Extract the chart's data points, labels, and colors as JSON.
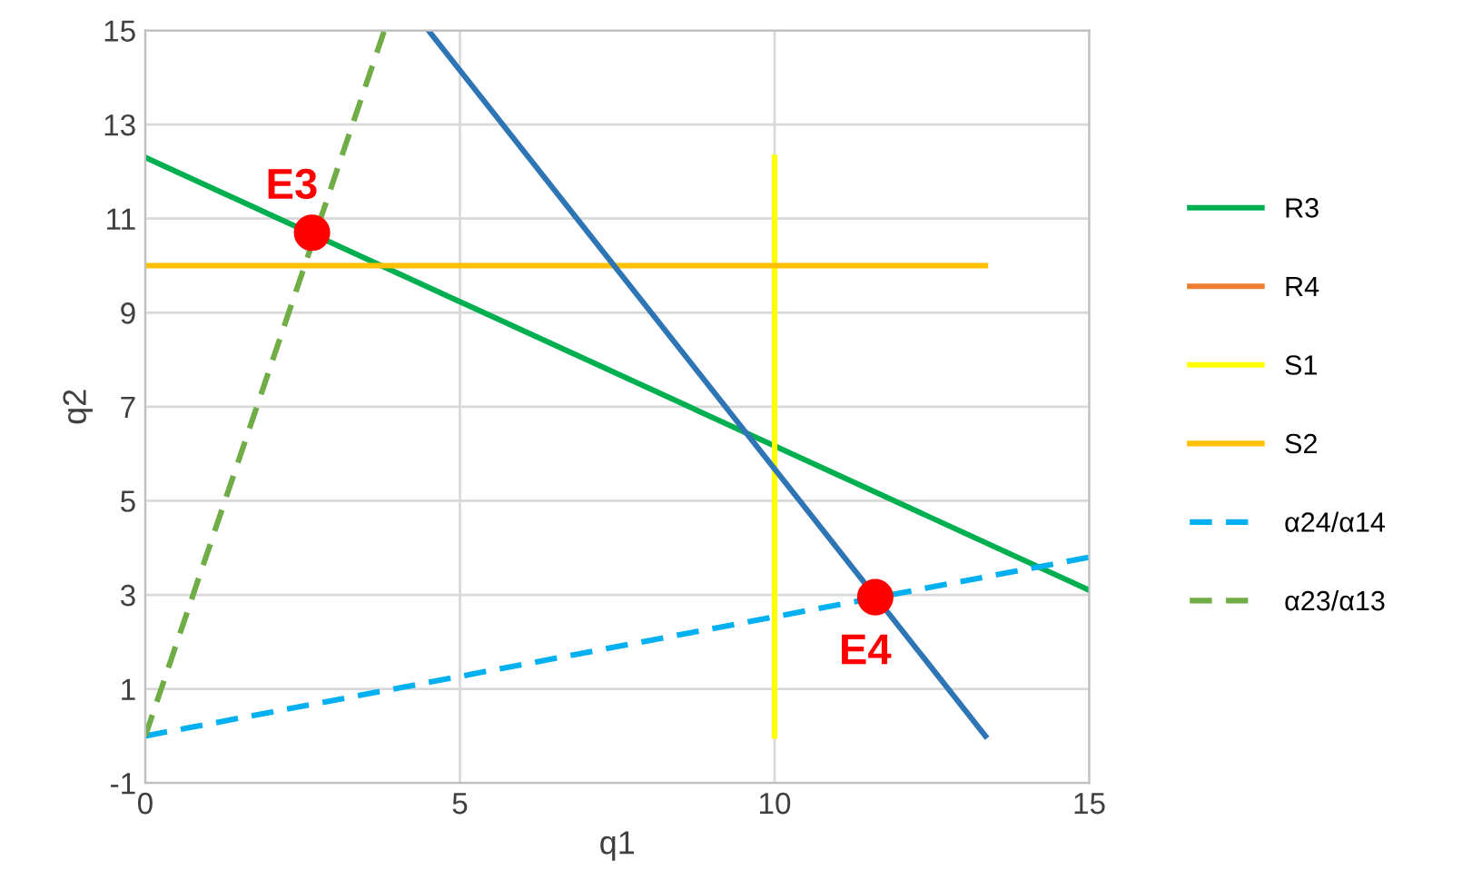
{
  "chart_data": {
    "type": "line",
    "xlabel": "q1",
    "ylabel": "q2",
    "xlim": [
      0,
      15
    ],
    "ylim": [
      -1,
      15
    ],
    "xticks": [
      0,
      5,
      10,
      15
    ],
    "yticks": [
      -1,
      1,
      3,
      5,
      7,
      9,
      11,
      13,
      15
    ],
    "grid": true,
    "legend": "right",
    "marker": "none",
    "series": [
      {
        "name": "R3",
        "color": "#00b050",
        "x": [
          0,
          15
        ],
        "values": [
          12.3,
          3.1
        ]
      },
      {
        "name": "R4",
        "color": "#ed7d31"
      },
      {
        "name": "S1",
        "color": "#ffff00",
        "x": [
          10,
          10
        ],
        "values": [
          0,
          12.3
        ]
      },
      {
        "name": "S2",
        "color": "#ffc000",
        "x": [
          0,
          13.35
        ],
        "values": [
          10,
          10
        ]
      },
      {
        "name": "α24/α14",
        "color": "#00b0f0",
        "line_style": "dashed",
        "x": [
          0,
          15
        ],
        "values": [
          0,
          3.8
        ]
      },
      {
        "name": "α23/α13",
        "color": "#70ad47",
        "line_style": "dashed",
        "x": [
          0,
          3.8
        ],
        "values": [
          0,
          15
        ]
      },
      {
        "color": "#2e75b6",
        "x": [
          4.5,
          13.35
        ],
        "values": [
          15,
          0
        ]
      },
      {
        "type": "scatter",
        "color": "#ff0000",
        "marker": "circle",
        "x": [
          2.65,
          11.6
        ],
        "values": [
          10.7,
          2.95
        ]
      }
    ],
    "annotations": [
      {
        "text": "E3",
        "x": 2.65,
        "y": 10.7
      },
      {
        "text": "E4",
        "x": 11.6,
        "y": 2.95
      }
    ]
  }
}
